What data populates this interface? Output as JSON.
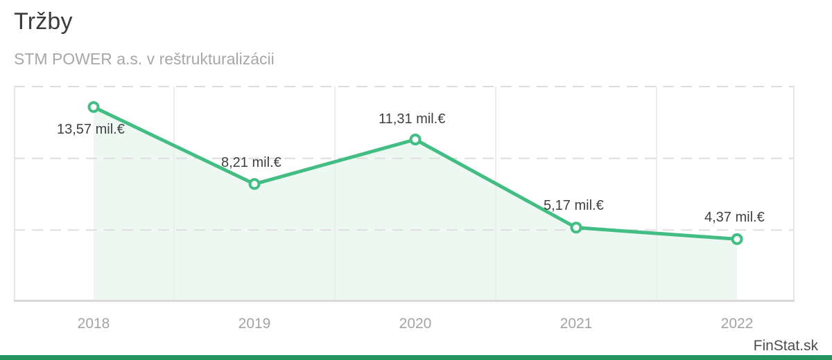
{
  "header": {
    "title": "Tržby",
    "subtitle": "STM POWER a.s. v reštrukturalizácii"
  },
  "watermark": "FinStat.sk",
  "chart_data": {
    "type": "area",
    "categories": [
      "2018",
      "2019",
      "2020",
      "2021",
      "2022"
    ],
    "values": [
      13.57,
      8.21,
      11.31,
      5.17,
      4.37
    ],
    "point_labels": [
      "13,57 mil.€",
      "8,21 mil.€",
      "11,31 mil.€",
      "5,17 mil.€",
      "4,37 mil.€"
    ],
    "title": "Tržby",
    "xlabel": "",
    "ylabel": "",
    "ylim": [
      0,
      15
    ],
    "gridline_values": [
      5,
      10,
      15
    ],
    "grid": "horizontal-dashed",
    "legend": "none",
    "colors": {
      "line": "#42bd84",
      "marker_fill": "#ffffff",
      "area_fill": "#edf8f2",
      "grid_dash": "#dedede",
      "band_separator": "#ededed",
      "plot_border": "#e6e6e6",
      "bottom_border": "#d9d9d9",
      "data_label": "#3f3f3f",
      "axis_label": "#a3a3a3",
      "brand_bar": "#25935f"
    }
  }
}
